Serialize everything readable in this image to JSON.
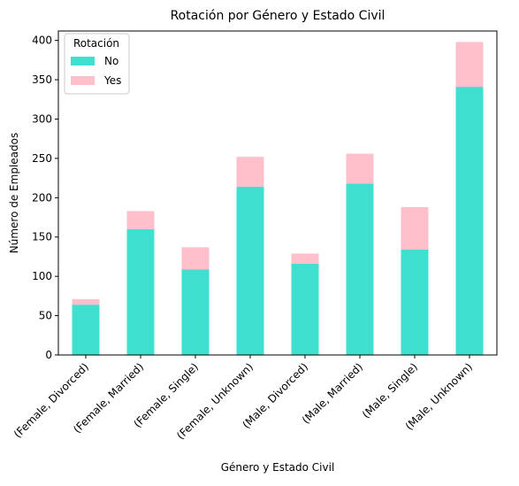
{
  "chart_data": {
    "type": "bar",
    "stacked": true,
    "title": "Rotación por Género y Estado Civil",
    "xlabel": "Género y Estado Civil",
    "ylabel": "Número de Empleados",
    "categories": [
      "(Female, Divorced)",
      "(Female, Married)",
      "(Female, Single)",
      "(Female, Unknown)",
      "(Male, Divorced)",
      "(Male, Married)",
      "(Male, Single)",
      "(Male, Unknown)"
    ],
    "series": [
      {
        "name": "No",
        "color": "#40E0D0",
        "values": [
          64,
          160,
          109,
          214,
          116,
          218,
          134,
          341
        ]
      },
      {
        "name": "Yes",
        "color": "#FFC0CB",
        "values": [
          7,
          23,
          28,
          38,
          13,
          38,
          54,
          57
        ]
      }
    ],
    "ylim": [
      0,
      412
    ],
    "yticks": [
      0,
      50,
      100,
      150,
      200,
      250,
      300,
      350,
      400
    ],
    "legend": {
      "title": "Rotación",
      "placement": "top-left"
    },
    "grid": false
  }
}
